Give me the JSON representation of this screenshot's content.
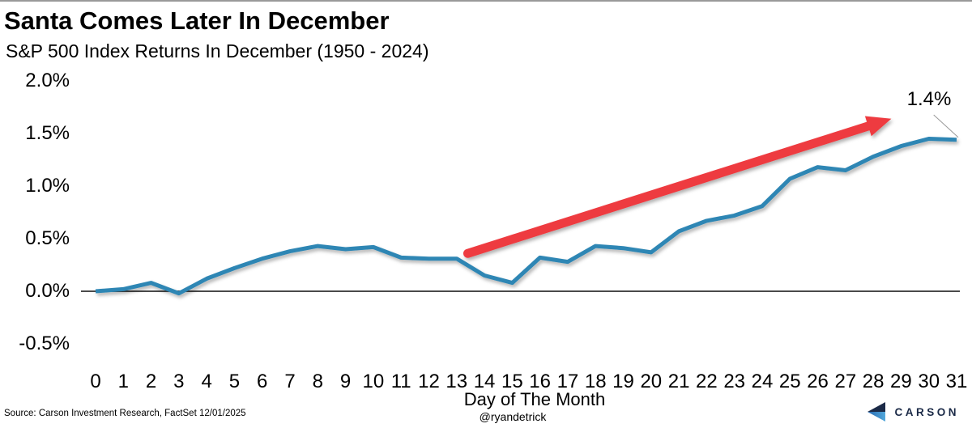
{
  "chart_data": {
    "type": "line",
    "title": "Santa Comes Later In December",
    "subtitle": "S&P 500 Index Returns In December (1950 - 2024)",
    "xlabel": "Day of The Month",
    "ylabel": "",
    "ylim": [
      -0.5,
      2.0
    ],
    "xlim": [
      0,
      31
    ],
    "grid": false,
    "legend": "none",
    "line_color": "#2E86B4",
    "x": [
      0,
      1,
      2,
      3,
      4,
      5,
      6,
      7,
      8,
      9,
      10,
      11,
      12,
      13,
      14,
      15,
      16,
      17,
      18,
      19,
      20,
      21,
      22,
      23,
      24,
      25,
      26,
      27,
      28,
      29,
      30,
      31
    ],
    "values": [
      0.0,
      0.02,
      0.08,
      -0.02,
      0.12,
      0.22,
      0.31,
      0.38,
      0.43,
      0.4,
      0.42,
      0.32,
      0.31,
      0.31,
      0.15,
      0.08,
      0.32,
      0.28,
      0.43,
      0.41,
      0.37,
      0.57,
      0.67,
      0.72,
      0.81,
      1.07,
      1.18,
      1.15,
      1.28,
      1.38,
      1.45,
      1.44
    ],
    "y_ticks": [
      {
        "label": "2.0%",
        "value": 2.0
      },
      {
        "label": "1.5%",
        "value": 1.5
      },
      {
        "label": "1.0%",
        "value": 1.0
      },
      {
        "label": "0.5%",
        "value": 0.5
      },
      {
        "label": "0.0%",
        "value": 0.0
      },
      {
        "label": "-0.5%",
        "value": -0.5
      }
    ],
    "annotation": {
      "label": "1.4%",
      "arrow_color": "#EE3B40",
      "arrow_start": {
        "day": 13.4,
        "value": 0.36
      },
      "arrow_end": {
        "day": 28.65,
        "value": 1.64
      }
    }
  },
  "footer": {
    "source": "Source: Carson Investment Research, FactSet 12/01/2025",
    "handle": "@ryandetrick",
    "logo_text": "CARSON"
  },
  "colors": {
    "line": "#2E86B4",
    "arrow": "#EE3B40",
    "axis": "#4a4a4a",
    "leader": "#999999",
    "logo_navy": "#1B2A47",
    "logo_blue": "#2567AE",
    "logo_light_blue": "#54A9DC"
  }
}
